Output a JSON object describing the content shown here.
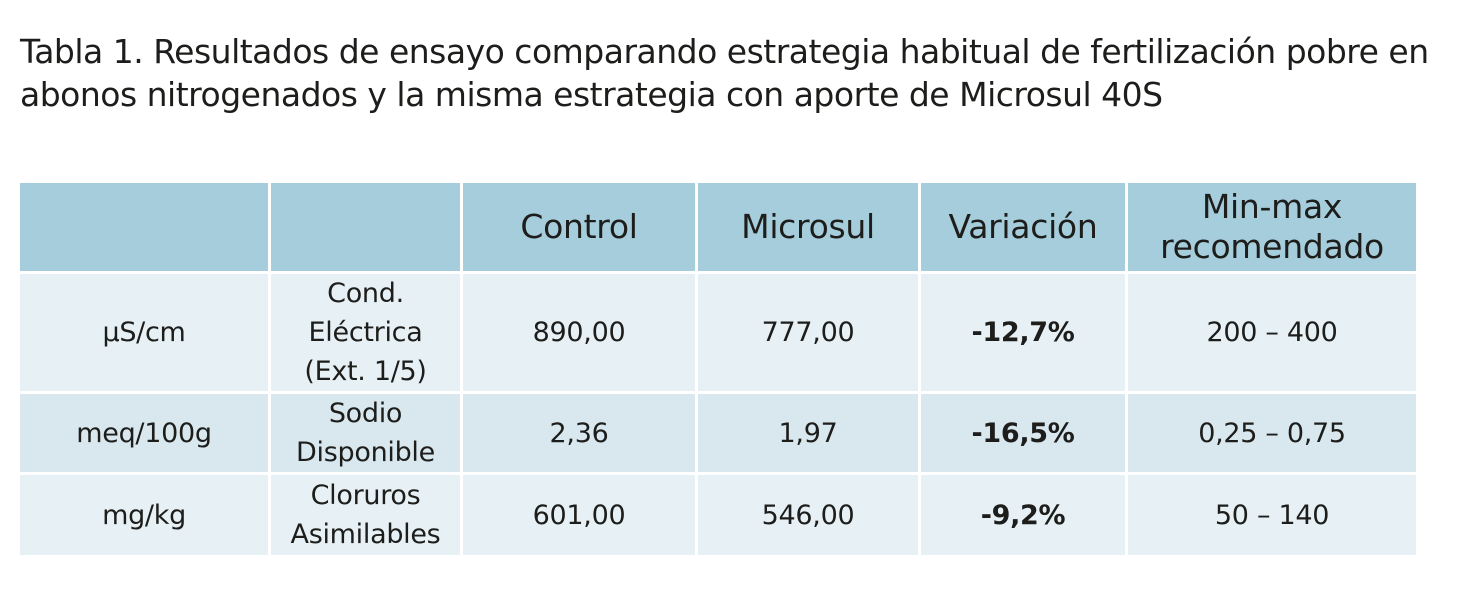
{
  "caption": "Tabla 1. Resultados de ensayo comparando estrategia habitual de fertilización pobre en abonos nitrogenados y la misma estrategia con aporte de Microsul 40S",
  "table": {
    "headers": [
      "",
      "",
      "Control",
      "Microsul",
      "Variación",
      "Min-max recomendado"
    ],
    "rows": [
      {
        "unit": "µS/cm",
        "parameter": "Cond. Eléctrica (Ext. 1/5)",
        "control": "890,00",
        "microsul": "777,00",
        "variation": "-12,7%",
        "range": "200 – 400"
      },
      {
        "unit": "meq/100g",
        "parameter": "Sodio Disponible",
        "control": "2,36",
        "microsul": "1,97",
        "variation": "-16,5%",
        "range": "0,25 – 0,75"
      },
      {
        "unit": "mg/kg",
        "parameter": "Cloruros Asimilables",
        "control": "601,00",
        "microsul": "546,00",
        "variation": "-9,2%",
        "range": "50 – 140"
      }
    ]
  },
  "colors": {
    "header_bg": "#a6cddb",
    "row_light_bg": "#e7f1f5",
    "row_mid_bg": "#d8e8ee",
    "text": "#1d1d1b"
  }
}
